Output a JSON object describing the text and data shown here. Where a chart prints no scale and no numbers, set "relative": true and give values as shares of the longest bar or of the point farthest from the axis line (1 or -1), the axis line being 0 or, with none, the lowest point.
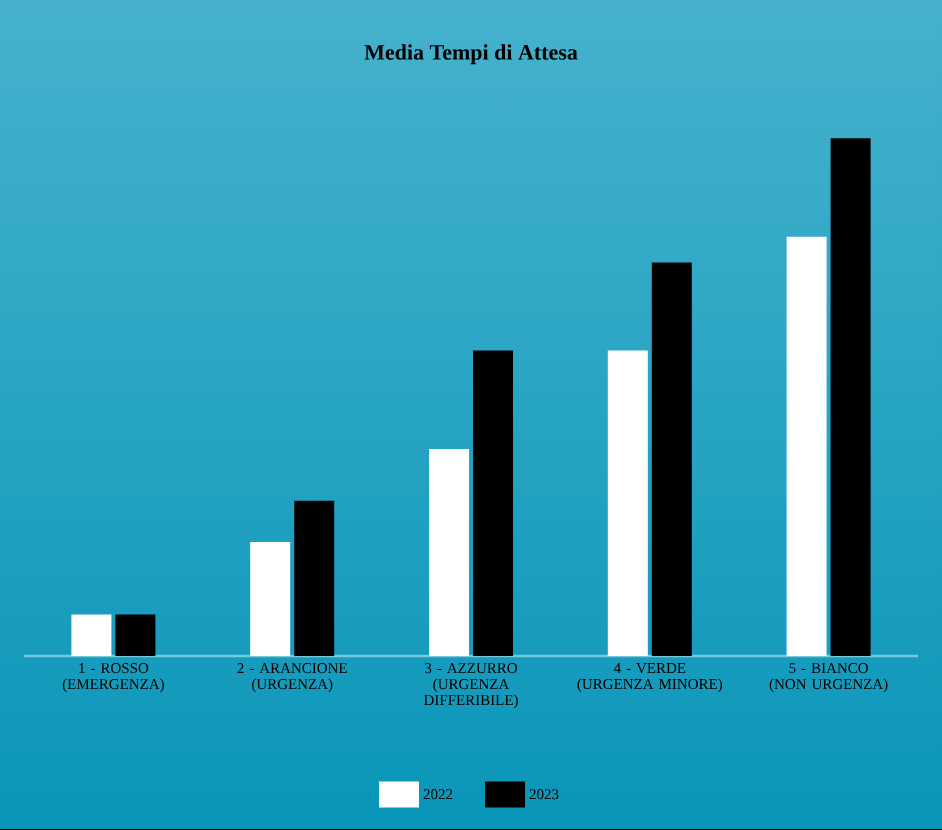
{
  "chart_data": {
    "type": "bar",
    "title": "Media Tempi di Attesa",
    "categories": [
      "1 - ROSSO (EMERGENZA)",
      "2 - ARANCIONE (URGENZA)",
      "3 - AZZURRO (URGENZA DIFFERIBILE)",
      "4 - VERDE (URGENZA MINORE)",
      "5 - BIANCO (NON URGENZA)"
    ],
    "series": [
      {
        "name": "2022",
        "color": "#ffffff",
        "values": [
          0.08,
          0.22,
          0.4,
          0.59,
          0.81
        ]
      },
      {
        "name": "2023",
        "color": "#000000",
        "values": [
          0.08,
          0.3,
          0.59,
          0.76,
          1.0
        ]
      }
    ],
    "relative": true,
    "legend": "bottom"
  }
}
